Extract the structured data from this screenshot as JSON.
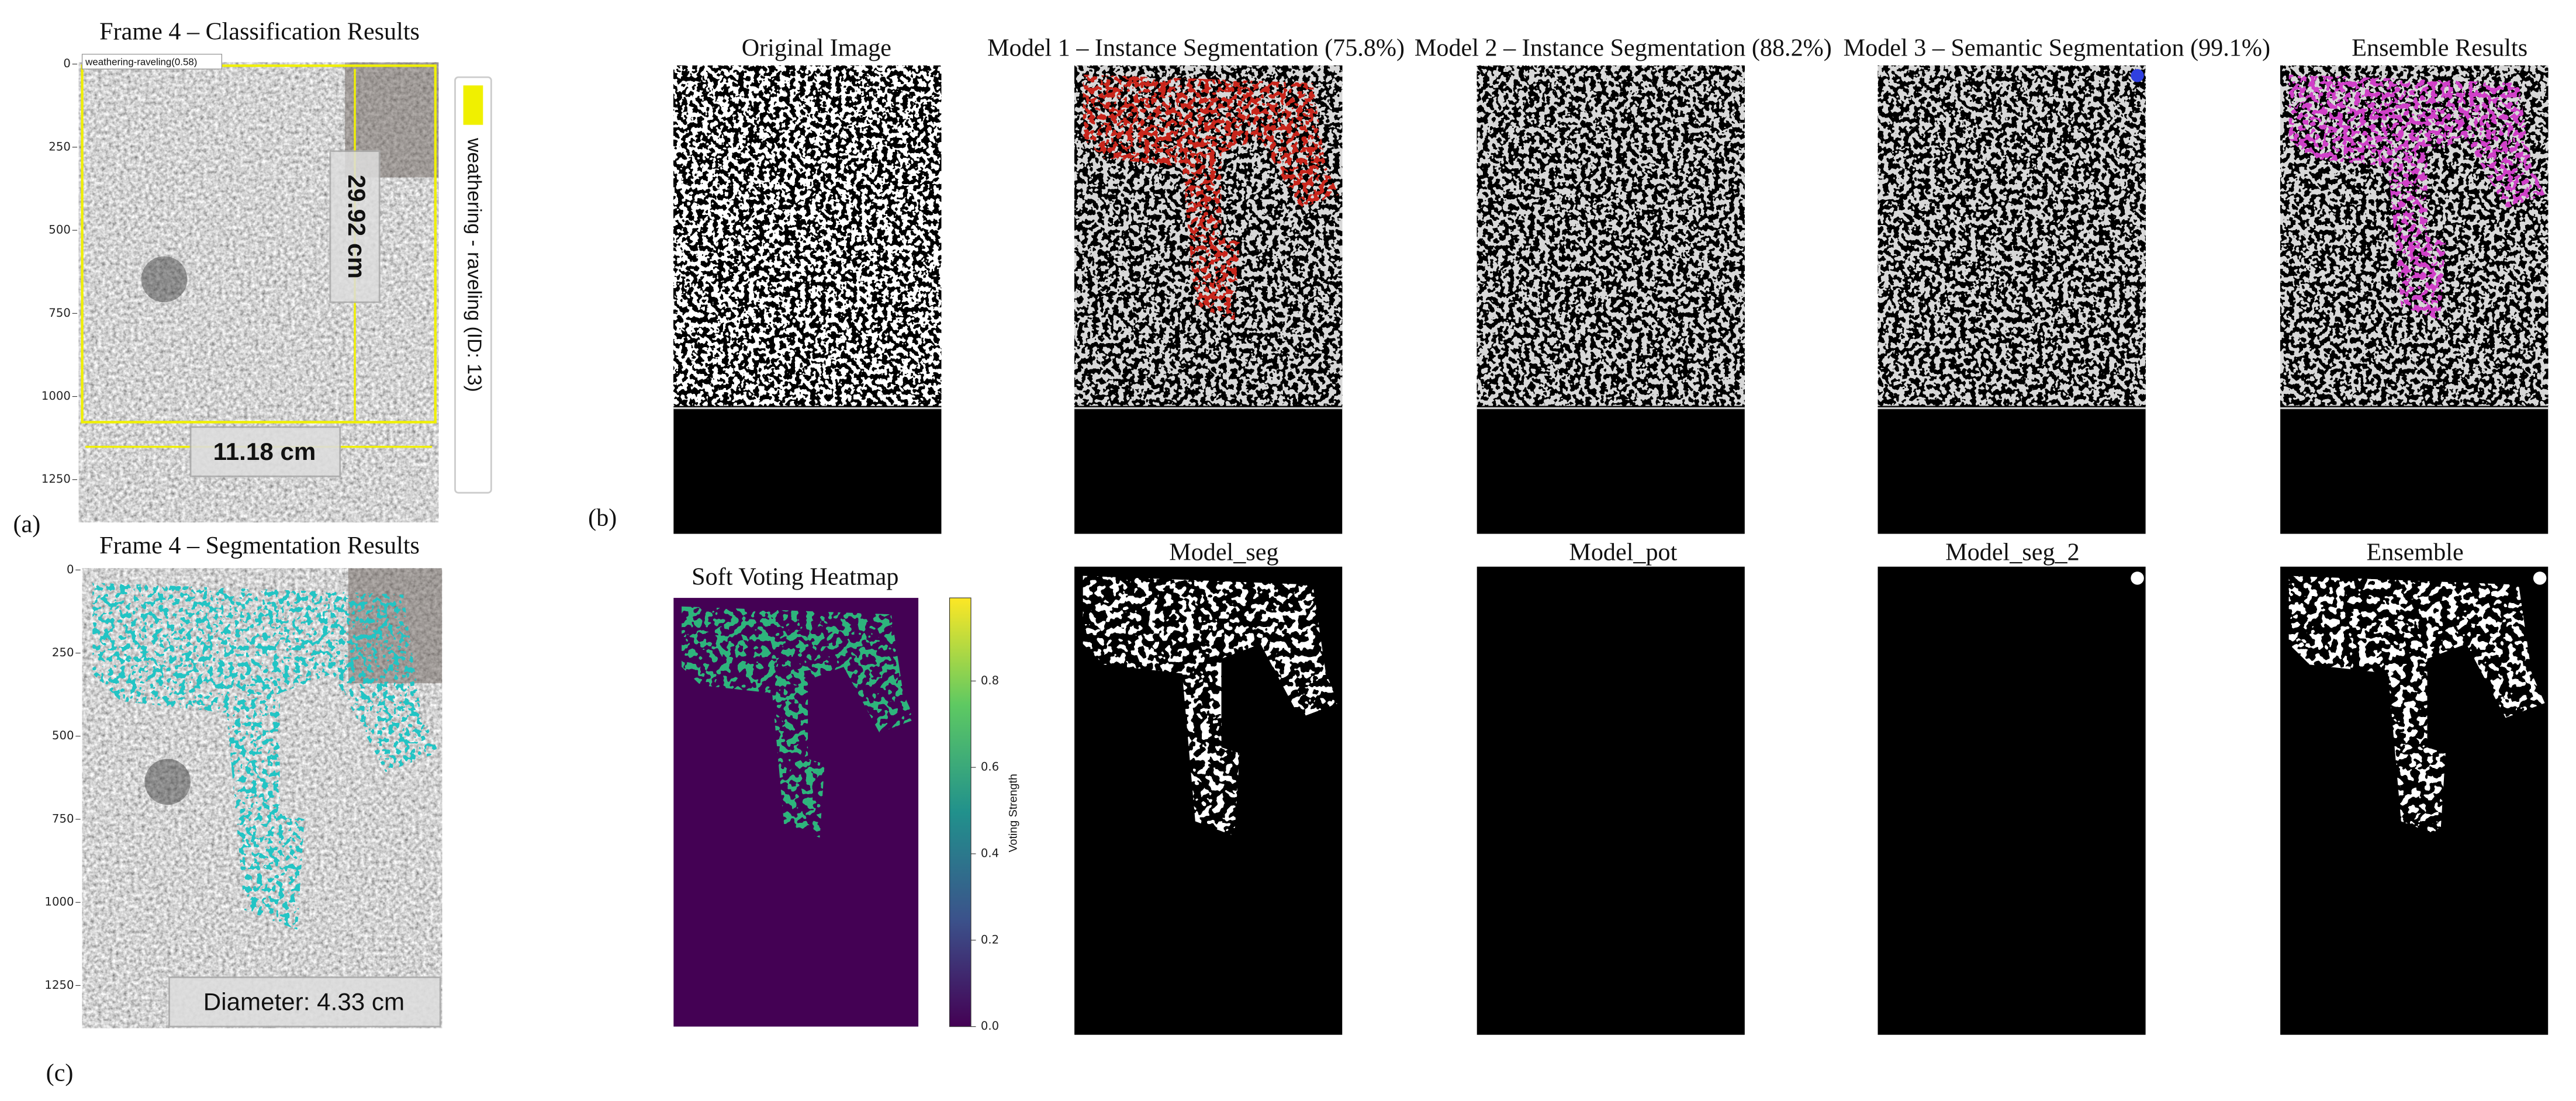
{
  "panel_labels": [
    "(a)",
    "(b)",
    "(c)"
  ],
  "classification": {
    "title": "Frame 4 – Classification Results",
    "box_label": "weathering-raveling(0.58)",
    "height_label": "29.92 cm",
    "width_label": "11.18 cm",
    "legend": "weathering - raveling (ID: 13)",
    "yticks": [
      "0",
      "250",
      "500",
      "750",
      "1000",
      "1250"
    ]
  },
  "segmentation": {
    "title": "Frame 4 – Segmentation Results",
    "diameter": "Diameter: 4.33 cm",
    "yticks": [
      "0",
      "250",
      "500",
      "750",
      "1000",
      "1250"
    ]
  },
  "models_row": {
    "titles": [
      "Original Image",
      "Model 1 – Instance Segmentation (75.8%)",
      "Model 2 – Instance Segmentation (88.2%)",
      "Model 3 – Semantic Segmentation (99.1%)",
      "Ensemble Results"
    ]
  },
  "masks_row": {
    "heatmap_title": "Soft Voting Heatmap",
    "colorbar_label": "Voting Strength",
    "colorbar_ticks": [
      "0.0",
      "0.2",
      "0.4",
      "0.6",
      "0.8"
    ],
    "titles": [
      "Model_seg",
      "Model_pot",
      "Model_seg_2",
      "Ensemble"
    ]
  }
}
